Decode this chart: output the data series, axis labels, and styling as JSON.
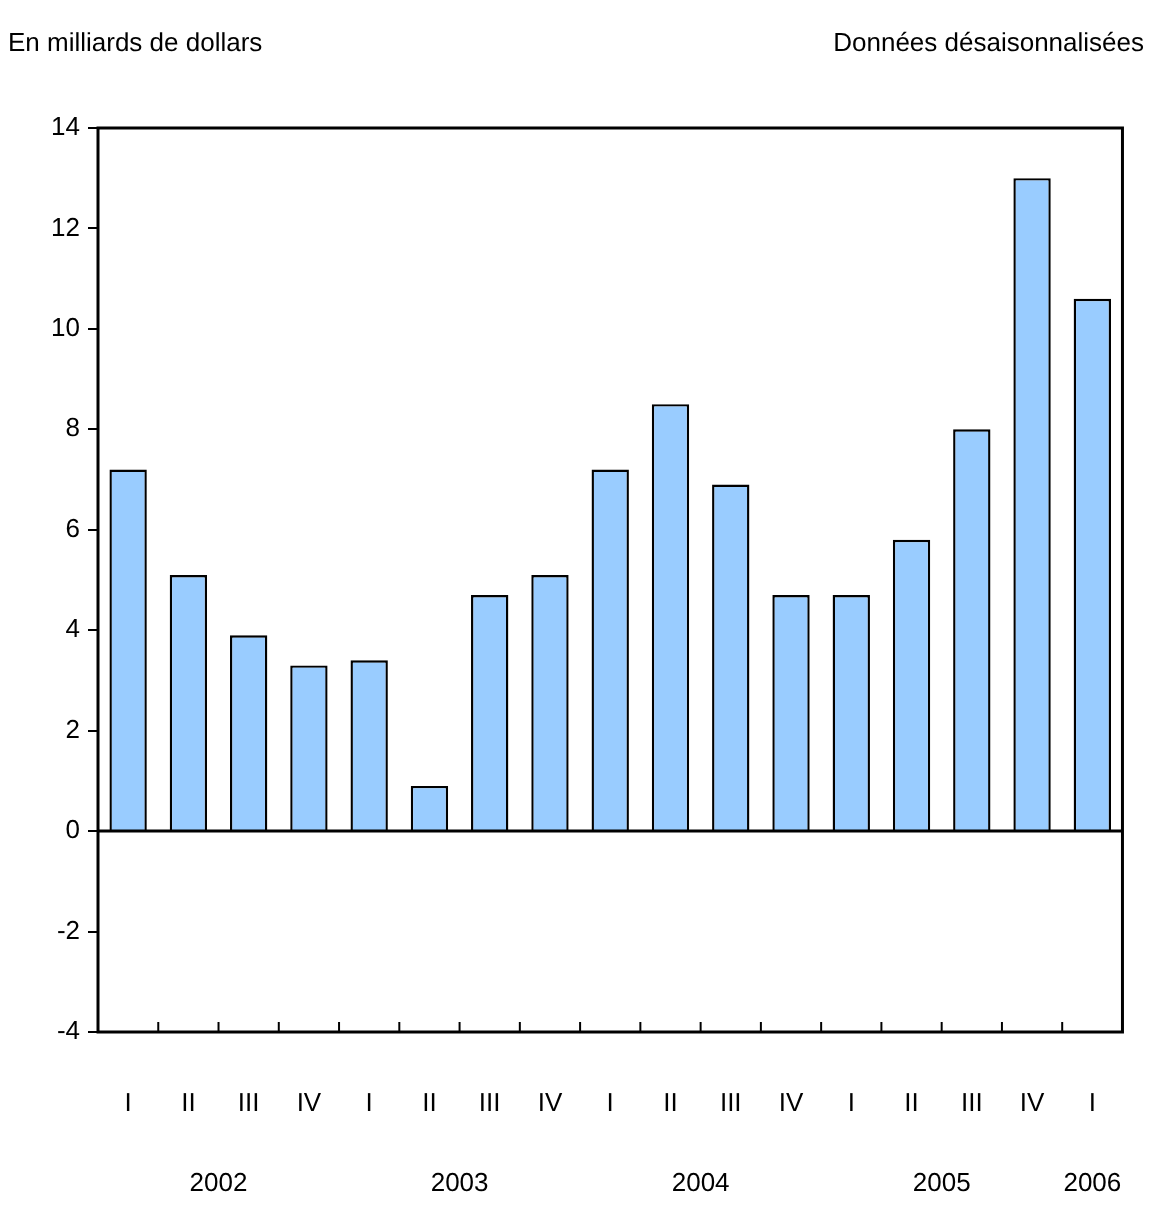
{
  "chart_data": {
    "type": "bar",
    "ylabel": "En milliards de dollars",
    "subtitle": "Données désaisonnalisées",
    "categories": [
      "I",
      "II",
      "III",
      "IV",
      "I",
      "II",
      "III",
      "IV",
      "I",
      "II",
      "III",
      "IV",
      "I",
      "II",
      "III",
      "IV",
      "I"
    ],
    "values": [
      7.2,
      5.1,
      3.9,
      3.3,
      3.4,
      0.9,
      4.7,
      5.1,
      7.2,
      8.5,
      6.9,
      4.7,
      4.7,
      5.8,
      8.0,
      13.0,
      10.6
    ],
    "color": "#99ccff",
    "ylim": [
      -4,
      14
    ],
    "yticks": [
      -4,
      -2,
      0,
      2,
      4,
      6,
      8,
      10,
      12,
      14
    ],
    "grid": false,
    "legend": false,
    "ref_lines": [
      {
        "axis": "y",
        "value": 0,
        "color": "#000000"
      }
    ],
    "annotations": [
      "2002",
      "2003",
      "2004",
      "2005",
      "2006"
    ]
  }
}
